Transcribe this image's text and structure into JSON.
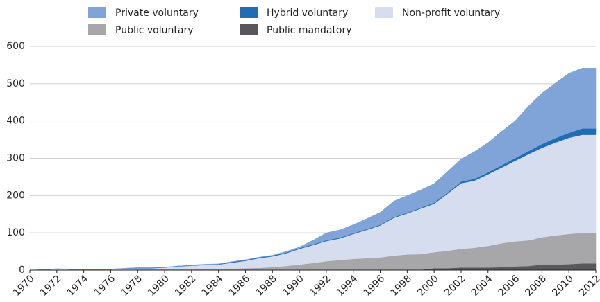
{
  "chart_data": {
    "type": "stacked-area",
    "x": [
      1970,
      1971,
      1972,
      1973,
      1974,
      1975,
      1976,
      1977,
      1978,
      1979,
      1980,
      1981,
      1982,
      1983,
      1984,
      1985,
      1986,
      1987,
      1988,
      1989,
      1990,
      1991,
      1992,
      1993,
      1994,
      1995,
      1996,
      1997,
      1998,
      1999,
      2000,
      2001,
      2002,
      2003,
      2004,
      2005,
      2006,
      2007,
      2008,
      2009,
      2010,
      2011,
      2012
    ],
    "series": [
      {
        "name": "Public mandatory",
        "color": "#58585a",
        "values": [
          0,
          0,
          0,
          0,
          0,
          0,
          0,
          0,
          0,
          0,
          0,
          0,
          0,
          0,
          0,
          0,
          0,
          1,
          1,
          1,
          1,
          1,
          1,
          1,
          1,
          1,
          1,
          1,
          1,
          1,
          5,
          5,
          7,
          7,
          7,
          8,
          10,
          11,
          15,
          15,
          16,
          18,
          18
        ]
      },
      {
        "name": "Public voluntary",
        "color": "#a7a7a9",
        "values": [
          0,
          0,
          1,
          1,
          1,
          1,
          1,
          1,
          2,
          2,
          2,
          2,
          2,
          3,
          3,
          4,
          5,
          5,
          7,
          10,
          14,
          18,
          23,
          26,
          29,
          31,
          33,
          38,
          41,
          42,
          43,
          47,
          50,
          53,
          58,
          64,
          67,
          69,
          73,
          78,
          81,
          82,
          82
        ]
      },
      {
        "name": "Non-profit voluntary",
        "color": "#d5ddef",
        "values": [
          0,
          1,
          2,
          1,
          1,
          1,
          1,
          3,
          3,
          3,
          5,
          8,
          10,
          11,
          12,
          16,
          20,
          26,
          29,
          34,
          42,
          48,
          54,
          58,
          67,
          76,
          86,
          101,
          110,
          122,
          130,
          153,
          176,
          180,
          192,
          203,
          216,
          231,
          240,
          249,
          258,
          263,
          263
        ]
      },
      {
        "name": "Hybrid voluntary",
        "color": "#1f6db5",
        "values": [
          0,
          0,
          0,
          0,
          0,
          0,
          0,
          0,
          1,
          1,
          1,
          1,
          1,
          1,
          1,
          2,
          2,
          2,
          2,
          2,
          2,
          2,
          2,
          2,
          2,
          2,
          2,
          2,
          2,
          2,
          3,
          3,
          4,
          5,
          5,
          6,
          7,
          8,
          10,
          12,
          13,
          17,
          17
        ]
      },
      {
        "name": "Private voluntary",
        "color": "#80a4d7",
        "values": [
          0,
          0,
          1,
          1,
          1,
          1,
          1,
          1,
          1,
          1,
          0,
          0,
          1,
          1,
          1,
          1,
          1,
          1,
          1,
          3,
          3,
          11,
          20,
          21,
          23,
          28,
          33,
          43,
          46,
          48,
          51,
          57,
          61,
          73,
          80,
          91,
          100,
          121,
          137,
          148,
          160,
          162,
          162
        ]
      }
    ],
    "xlim": [
      1970,
      2012
    ],
    "xticks": [
      1970,
      1972,
      1974,
      1976,
      1978,
      1980,
      1982,
      1984,
      1986,
      1988,
      1990,
      1992,
      1994,
      1996,
      1998,
      2000,
      2002,
      2004,
      2006,
      2008,
      2010,
      2012
    ],
    "ylim": [
      0,
      600
    ],
    "yticks": [
      0,
      100,
      200,
      300,
      400,
      500,
      600
    ],
    "grid": true
  }
}
